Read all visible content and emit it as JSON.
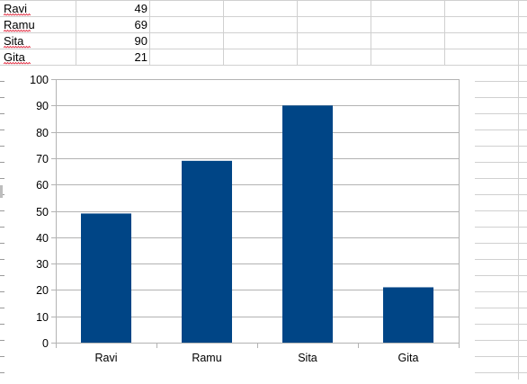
{
  "spreadsheet": {
    "rows": [
      {
        "name": "Ravi",
        "value": "49"
      },
      {
        "name": "Ramu",
        "value": "69"
      },
      {
        "name": "Sita",
        "value": "90"
      },
      {
        "name": "Gita",
        "value": "21"
      }
    ]
  },
  "chart_data": {
    "type": "bar",
    "categories": [
      "Ravi",
      "Ramu",
      "Sita",
      "Gita"
    ],
    "values": [
      49,
      69,
      90,
      21
    ],
    "title": "",
    "xlabel": "",
    "ylabel": "",
    "ylim": [
      0,
      100
    ],
    "yticks": [
      0,
      10,
      20,
      30,
      40,
      50,
      60,
      70,
      80,
      90,
      100
    ],
    "grid": true,
    "legend": "none",
    "bar_color": "#004586"
  }
}
